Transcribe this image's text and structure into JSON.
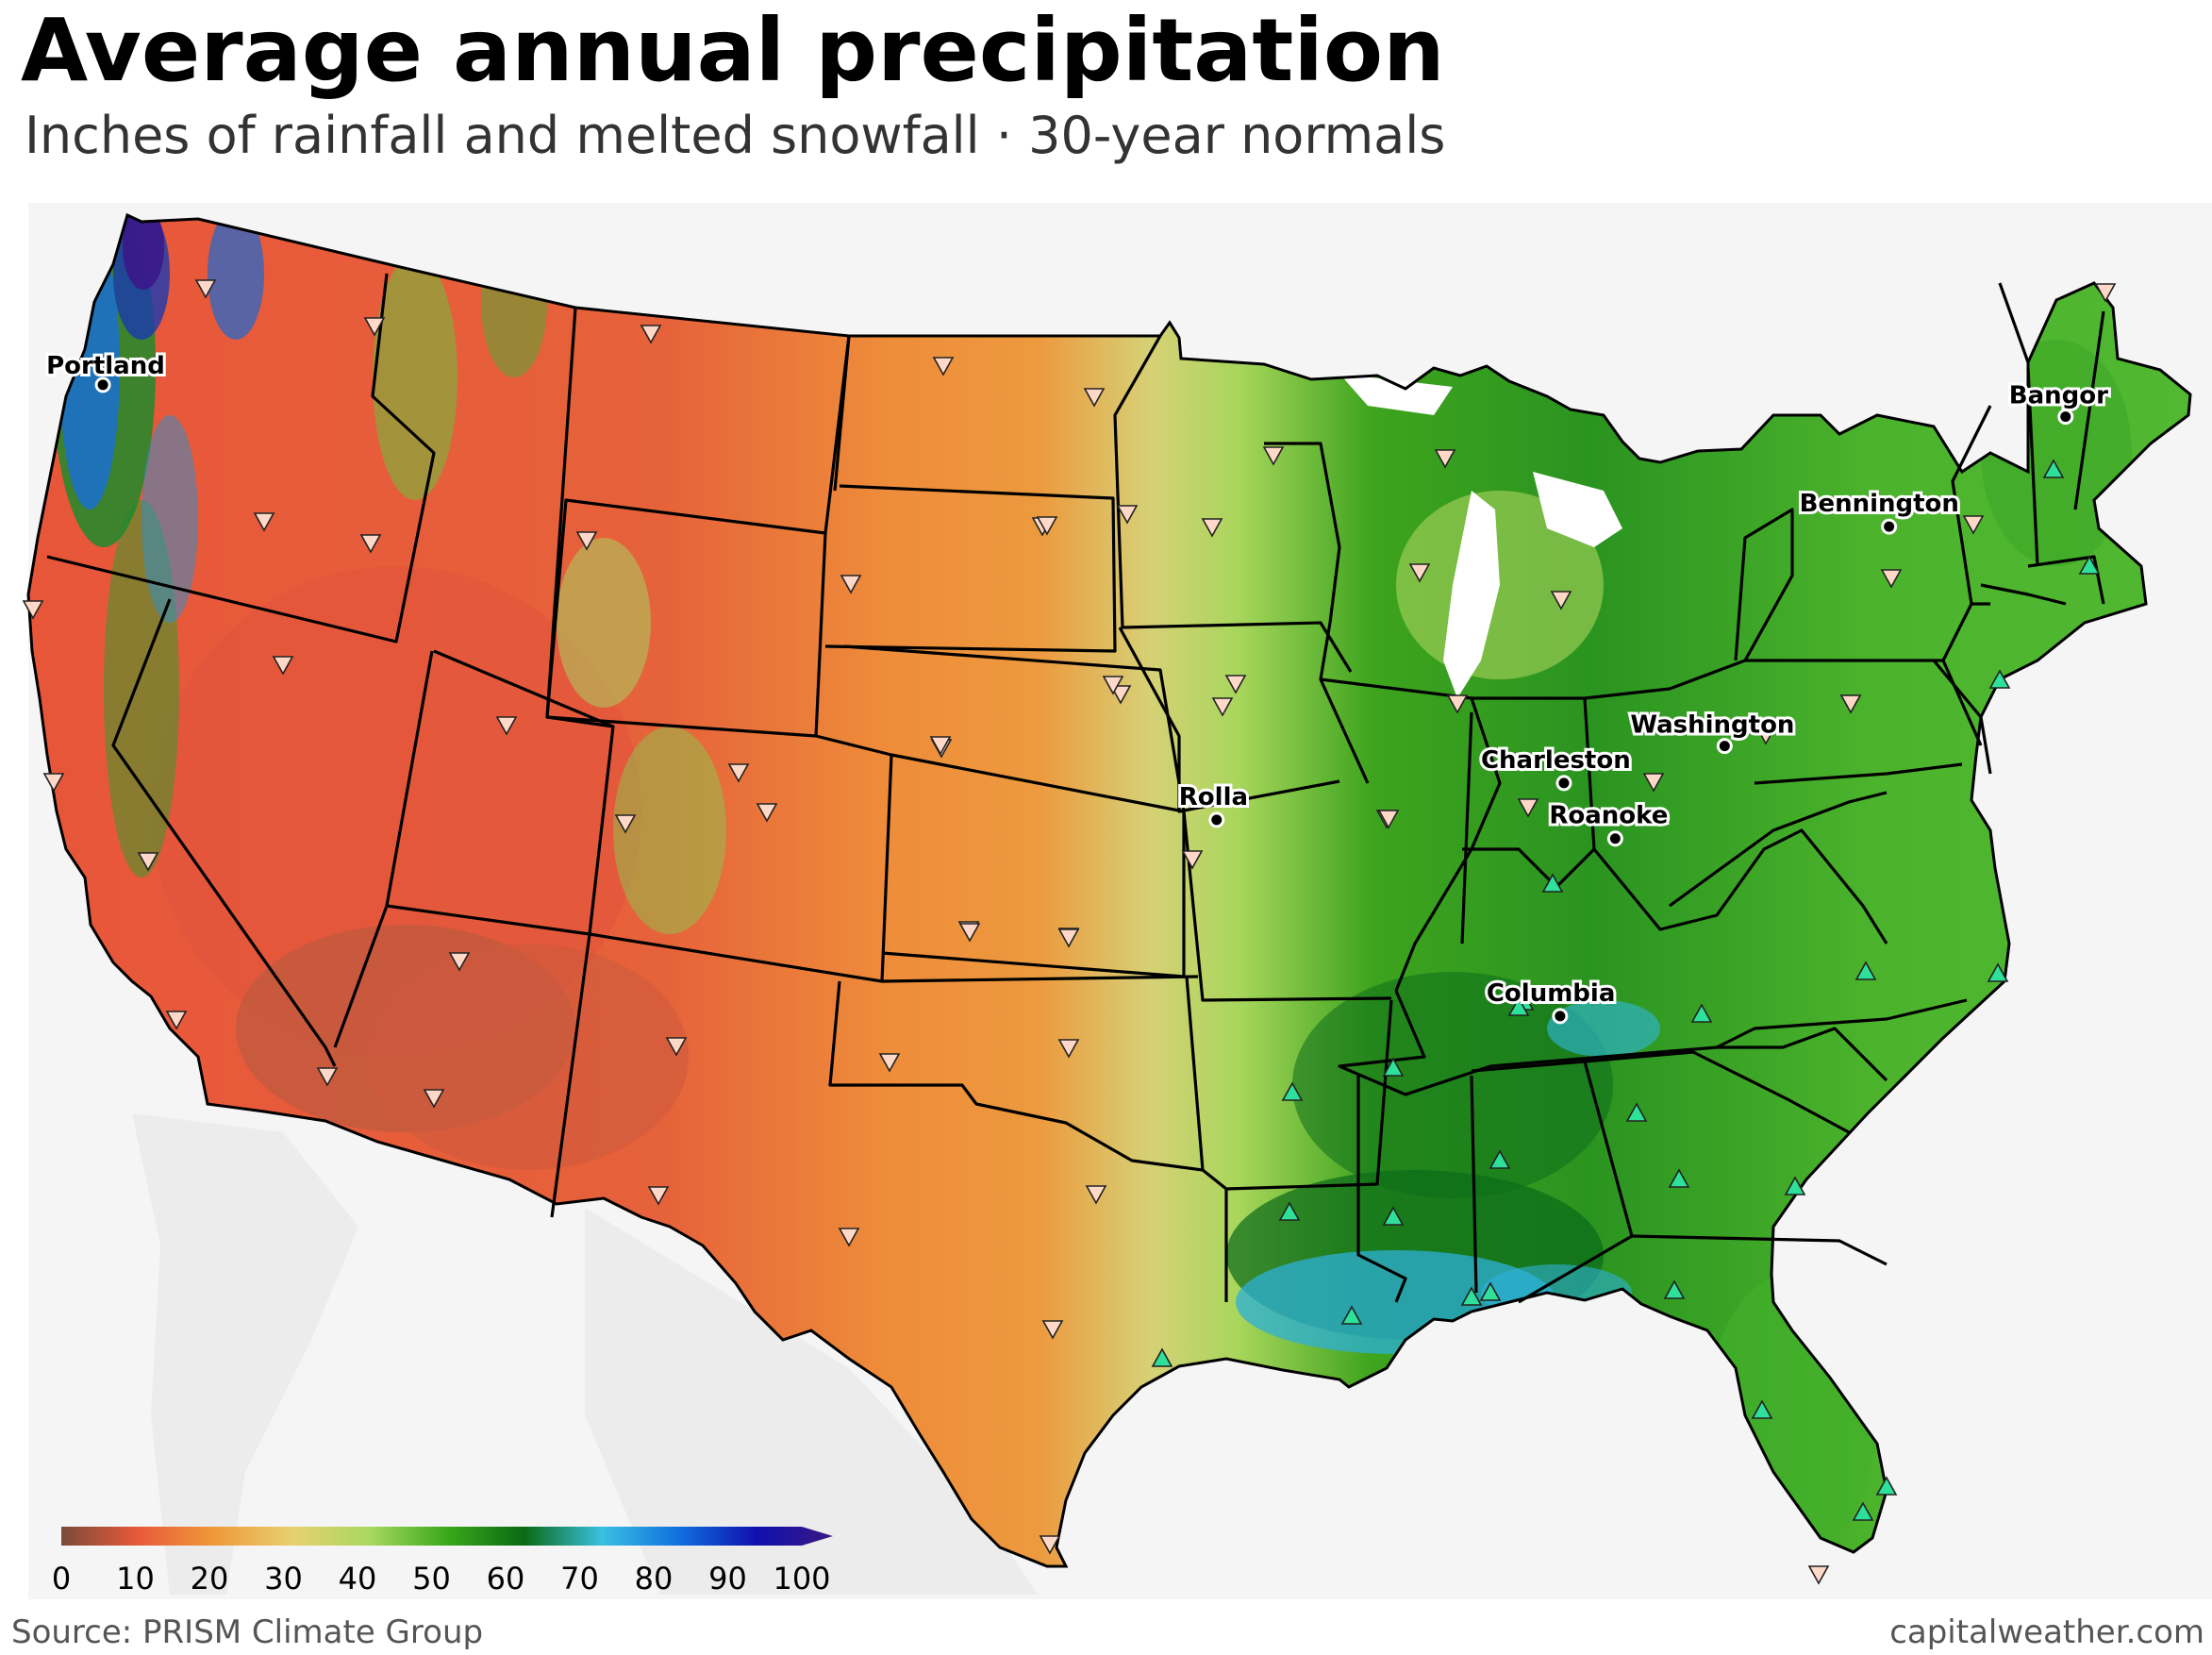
{
  "title": "Average annual precipitation",
  "subtitle": "Inches of rainfall and melted snowfall · 30-year normals",
  "source": "Source: PRISM Climate Group",
  "credit": "capitalweather.com",
  "colorbar": {
    "ticks": [
      "0",
      "10",
      "20",
      "30",
      "40",
      "50",
      "60",
      "70",
      "80",
      "90",
      "100"
    ],
    "range": [
      0,
      100
    ],
    "units": "inches",
    "stops": [
      "#7a4a3a",
      "#e85a3a",
      "#f09a3a",
      "#e8d070",
      "#a8d860",
      "#3aa81a",
      "#0a6a14",
      "#3ac0e0",
      "#1070e0",
      "#1010b0",
      "#3a1880"
    ]
  },
  "cities": [
    {
      "name": "Portland",
      "lon": -122.68,
      "lat": 45.52
    },
    {
      "name": "Bangor",
      "lon": -68.77,
      "lat": 44.8
    },
    {
      "name": "Bennington",
      "lon": -73.2,
      "lat": 42.88
    },
    {
      "name": "Washington",
      "lon": -77.04,
      "lat": 38.91
    },
    {
      "name": "Charleston",
      "lon": -81.63,
      "lat": 38.35
    },
    {
      "name": "Roanoke",
      "lon": -79.94,
      "lat": 37.27
    },
    {
      "name": "Rolla",
      "lon": -91.77,
      "lat": 37.95
    },
    {
      "name": "Columbia",
      "lon": -81.03,
      "lat": 34.0
    }
  ],
  "map_colors": {
    "dry": "#e2573a",
    "semi_arid": "#ee8e3c",
    "moderate": "#d8d57a",
    "humid": "#58b830",
    "wet": "#1f8a22",
    "very_wet": "#2aa6d8",
    "extreme": "#3a1a8a",
    "up_marker": "#2ee09a",
    "down_marker": "#ffd8c8"
  }
}
